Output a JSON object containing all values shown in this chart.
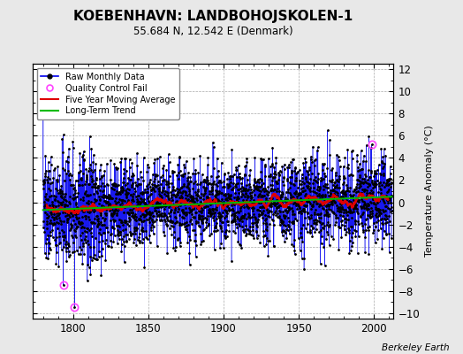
{
  "title": "KOEBENHAVN: LANDBOHOJSKOLEN-1",
  "subtitle": "55.684 N, 12.542 E (Denmark)",
  "ylabel": "Temperature Anomaly (°C)",
  "attribution": "Berkeley Earth",
  "xlim": [
    1773,
    2013
  ],
  "ylim": [
    -10.5,
    12.5
  ],
  "yticks": [
    -10,
    -8,
    -6,
    -4,
    -2,
    0,
    2,
    4,
    6,
    8,
    10,
    12
  ],
  "xticks": [
    1800,
    1850,
    1900,
    1950,
    2000
  ],
  "start_year": 1780,
  "end_year": 2012,
  "raw_color": "#0000EE",
  "moving_avg_color": "#DD0000",
  "trend_color": "#00BB00",
  "qc_fail_color": "#FF44FF",
  "background_color": "#E8E8E8",
  "plot_background": "#FFFFFF",
  "seed": 137
}
